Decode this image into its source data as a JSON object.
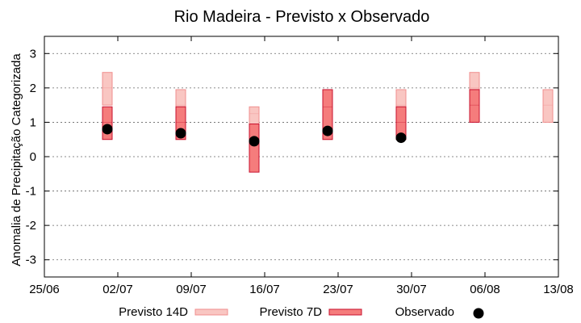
{
  "chart_data": {
    "type": "box",
    "title": "Rio Madeira - Previsto x Observado",
    "ylabel": "Anomalia de Precipitação Categorizada",
    "xlabel": "",
    "x_ticks": [
      "25/06",
      "02/07",
      "09/07",
      "16/07",
      "23/07",
      "30/07",
      "06/08",
      "13/08"
    ],
    "y_ticks": [
      "-3",
      "-2",
      "-1",
      "0",
      "1",
      "2",
      "3"
    ],
    "x_range_days": [
      0,
      49
    ],
    "ylim": [
      -3.5,
      3.5
    ],
    "grid": "horizontal-dotted",
    "legend": "bottom",
    "legend_entries": [
      "Previsto 14D",
      "Previsto 7D",
      "Observado"
    ],
    "colors": {
      "previsto_14d_fill": "#f9c6c2",
      "previsto_14d_stroke": "#f08f8f",
      "previsto_7d_fill": "#f57c7c",
      "previsto_7d_stroke": "#c8102e",
      "observado": "#000000"
    },
    "series": [
      {
        "name": "Previsto 14D",
        "points": [
          {
            "x": "2022-07-01",
            "low": 1.5,
            "mid": 2.0,
            "high": 2.45
          },
          {
            "x": "2022-07-08",
            "low": 0.5,
            "mid": 1.5,
            "high": 1.95
          },
          {
            "x": "2022-07-15",
            "low": 0.95,
            "mid": 1.25,
            "high": 1.45
          },
          {
            "x": "2022-07-22",
            "low": 0.5,
            "mid": 1.5,
            "high": 1.95
          },
          {
            "x": "2022-07-29",
            "low": 1.0,
            "mid": 1.5,
            "high": 1.95
          },
          {
            "x": "2022-08-05",
            "low": 1.5,
            "mid": 2.0,
            "high": 2.45
          },
          {
            "x": "2022-08-12",
            "low": 1.0,
            "mid": 1.5,
            "high": 1.95
          }
        ]
      },
      {
        "name": "Previsto 7D",
        "points": [
          {
            "x": "2022-07-01",
            "low": 0.5,
            "mid": 1.0,
            "high": 1.45
          },
          {
            "x": "2022-07-08",
            "low": 0.5,
            "mid": 1.0,
            "high": 1.45
          },
          {
            "x": "2022-07-15",
            "low": -0.45,
            "mid": 0.5,
            "high": 0.95
          },
          {
            "x": "2022-07-22",
            "low": 0.5,
            "mid": 1.45,
            "high": 1.95
          },
          {
            "x": "2022-07-29",
            "low": 0.5,
            "mid": 1.0,
            "high": 1.45
          },
          {
            "x": "2022-08-05",
            "low": 1.0,
            "mid": 1.5,
            "high": 1.95
          }
        ]
      },
      {
        "name": "Observado",
        "points": [
          {
            "x": "2022-07-01",
            "y": 0.8
          },
          {
            "x": "2022-07-08",
            "y": 0.68
          },
          {
            "x": "2022-07-15",
            "y": 0.45
          },
          {
            "x": "2022-07-22",
            "y": 0.75
          },
          {
            "x": "2022-07-29",
            "y": 0.55
          }
        ]
      }
    ]
  }
}
